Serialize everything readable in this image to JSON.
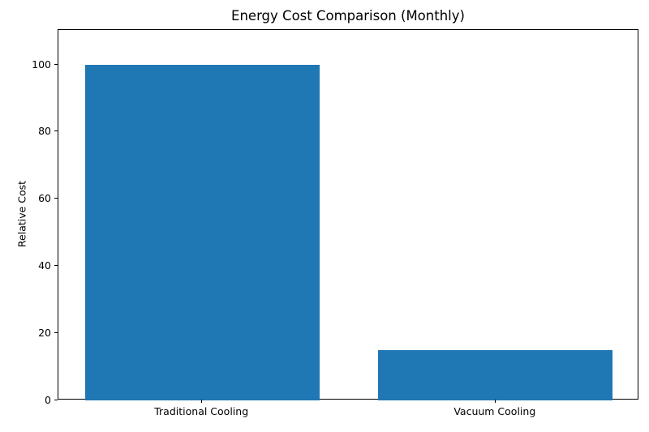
{
  "chart_data": {
    "type": "bar",
    "title": "Energy Cost Comparison (Monthly)",
    "xlabel": "",
    "ylabel": "Relative Cost",
    "categories": [
      "Traditional Cooling",
      "Vacuum Cooling"
    ],
    "values": [
      100,
      15
    ],
    "yticks": [
      0,
      20,
      40,
      60,
      80,
      100
    ],
    "ylim": [
      0,
      110.4
    ],
    "xlim": [
      -0.49,
      1.49
    ],
    "bar_width_fraction": 0.8,
    "bar_color": "#1f77b4",
    "axis_color": "#000000",
    "background_color": "#ffffff",
    "grid": false,
    "legend": "none"
  }
}
